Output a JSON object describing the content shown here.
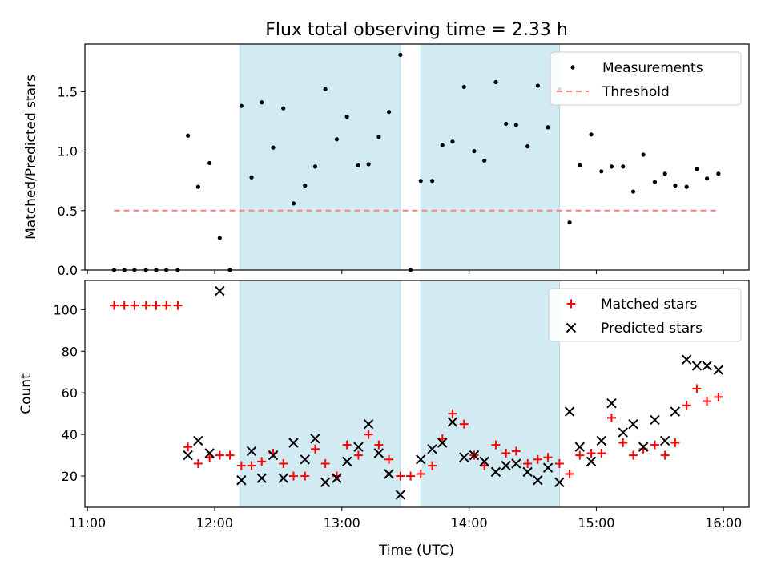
{
  "chart_data": {
    "type": "scatter",
    "title": "Flux total observing time = 2.33 h",
    "xlabel": "Time (UTC)",
    "x_unit": "hours UTC",
    "xlim": [
      10.98,
      16.2
    ],
    "xticks": [
      {
        "value": 11,
        "label": "11:00"
      },
      {
        "value": 12,
        "label": "12:00"
      },
      {
        "value": 13,
        "label": "13:00"
      },
      {
        "value": 14,
        "label": "14:00"
      },
      {
        "value": 15,
        "label": "15:00"
      },
      {
        "value": 16,
        "label": "16:00"
      }
    ],
    "shaded_intervals": [
      [
        12.2,
        13.46
      ],
      [
        13.62,
        14.71
      ]
    ],
    "shade_color": "#add8e6",
    "top_panel": {
      "ylabel": "Matched/Predicted stars",
      "ylim": [
        0,
        1.9
      ],
      "yticks": [
        {
          "value": 0,
          "label": "0.0"
        },
        {
          "value": 0.5,
          "label": "0.5"
        },
        {
          "value": 1.0,
          "label": "1.0"
        },
        {
          "value": 1.5,
          "label": "1.5"
        }
      ],
      "legend_position": "top-right",
      "series": [
        {
          "name": "Measurements",
          "color": "#000000",
          "marker": "dot",
          "x": [
            11.21,
            11.29,
            11.37,
            11.46,
            11.54,
            11.62,
            11.71,
            11.79,
            11.87,
            11.96,
            12.04,
            12.12,
            12.21,
            12.29,
            12.37,
            12.46,
            12.54,
            12.62,
            12.71,
            12.79,
            12.87,
            12.96,
            13.04,
            13.13,
            13.21,
            13.29,
            13.37,
            13.46,
            13.54,
            13.62,
            13.71,
            13.79,
            13.87,
            13.96,
            14.04,
            14.12,
            14.21,
            14.29,
            14.37,
            14.46,
            14.54,
            14.62,
            14.71,
            14.79,
            14.87,
            14.96,
            15.04,
            15.12,
            15.21,
            15.29,
            15.37,
            15.46,
            15.54,
            15.62,
            15.71,
            15.79,
            15.87,
            15.96
          ],
          "y": [
            0.0,
            0.0,
            0.0,
            0.0,
            0.0,
            0.0,
            0.0,
            1.13,
            0.7,
            0.9,
            0.27,
            0.0,
            1.38,
            0.78,
            1.41,
            1.03,
            1.36,
            0.56,
            0.71,
            0.87,
            1.52,
            1.1,
            1.29,
            0.88,
            0.89,
            1.12,
            1.33,
            1.81,
            0.0,
            0.75,
            0.75,
            1.05,
            1.08,
            1.54,
            1.0,
            0.92,
            1.58,
            1.23,
            1.22,
            1.04,
            1.55,
            1.2,
            1.52,
            0.4,
            0.88,
            1.14,
            0.83,
            0.87,
            0.87,
            0.66,
            0.97,
            0.74,
            0.81,
            0.71,
            0.7,
            0.85,
            0.77,
            0.81
          ]
        },
        {
          "name": "Threshold",
          "color": "#ff7f7f",
          "style": "dashed",
          "x": [
            11.21,
            15.96
          ],
          "y": [
            0.5,
            0.5
          ]
        }
      ]
    },
    "bottom_panel": {
      "ylabel": "Count",
      "ylim": [
        5,
        114
      ],
      "yticks": [
        {
          "value": 20,
          "label": "20"
        },
        {
          "value": 40,
          "label": "40"
        },
        {
          "value": 60,
          "label": "60"
        },
        {
          "value": 80,
          "label": "80"
        },
        {
          "value": 100,
          "label": "100"
        }
      ],
      "legend_position": "top-right",
      "series": [
        {
          "name": "Matched stars",
          "color": "#ff0000",
          "marker": "plus",
          "x": [
            11.21,
            11.29,
            11.37,
            11.46,
            11.54,
            11.62,
            11.71,
            11.79,
            11.87,
            11.96,
            12.04,
            12.12,
            12.21,
            12.29,
            12.37,
            12.46,
            12.54,
            12.62,
            12.71,
            12.79,
            12.87,
            12.96,
            13.04,
            13.13,
            13.21,
            13.29,
            13.37,
            13.46,
            13.54,
            13.62,
            13.71,
            13.79,
            13.87,
            13.96,
            14.04,
            14.12,
            14.21,
            14.29,
            14.37,
            14.46,
            14.54,
            14.62,
            14.71,
            14.79,
            14.87,
            14.96,
            15.04,
            15.12,
            15.21,
            15.29,
            15.37,
            15.46,
            15.54,
            15.62,
            15.71,
            15.79,
            15.87,
            15.96
          ],
          "y": [
            102,
            102,
            102,
            102,
            102,
            102,
            102,
            34,
            26,
            29,
            30,
            30,
            25,
            25,
            27,
            31,
            26,
            20,
            20,
            33,
            26,
            20,
            35,
            30,
            40,
            35,
            28,
            20,
            20,
            21,
            25,
            38,
            50,
            45,
            30,
            25,
            35,
            31,
            32,
            26,
            28,
            29,
            26,
            21,
            30,
            31,
            31,
            48,
            36,
            30,
            33,
            35,
            30,
            36,
            54,
            62,
            56,
            58
          ]
        },
        {
          "name": "Predicted stars",
          "color": "#000000",
          "marker": "x",
          "x": [
            11.79,
            11.87,
            11.96,
            12.04,
            12.21,
            12.29,
            12.37,
            12.46,
            12.54,
            12.62,
            12.71,
            12.79,
            12.87,
            12.96,
            13.04,
            13.13,
            13.21,
            13.29,
            13.37,
            13.46,
            13.62,
            13.71,
            13.79,
            13.87,
            13.96,
            14.04,
            14.12,
            14.21,
            14.29,
            14.37,
            14.46,
            14.54,
            14.62,
            14.71,
            14.79,
            14.87,
            14.96,
            15.04,
            15.12,
            15.21,
            15.29,
            15.37,
            15.46,
            15.54,
            15.62,
            15.71,
            15.79,
            15.87,
            15.96
          ],
          "y": [
            30,
            37,
            31,
            109,
            18,
            32,
            19,
            30,
            19,
            36,
            28,
            38,
            17,
            19,
            27,
            34,
            45,
            31,
            21,
            11,
            28,
            33,
            36,
            46,
            29,
            30,
            27,
            22,
            25,
            26,
            22,
            18,
            24,
            17,
            51,
            34,
            27,
            37,
            55,
            41,
            45,
            34,
            47,
            37,
            51,
            76,
            73,
            73,
            71
          ]
        }
      ]
    }
  }
}
